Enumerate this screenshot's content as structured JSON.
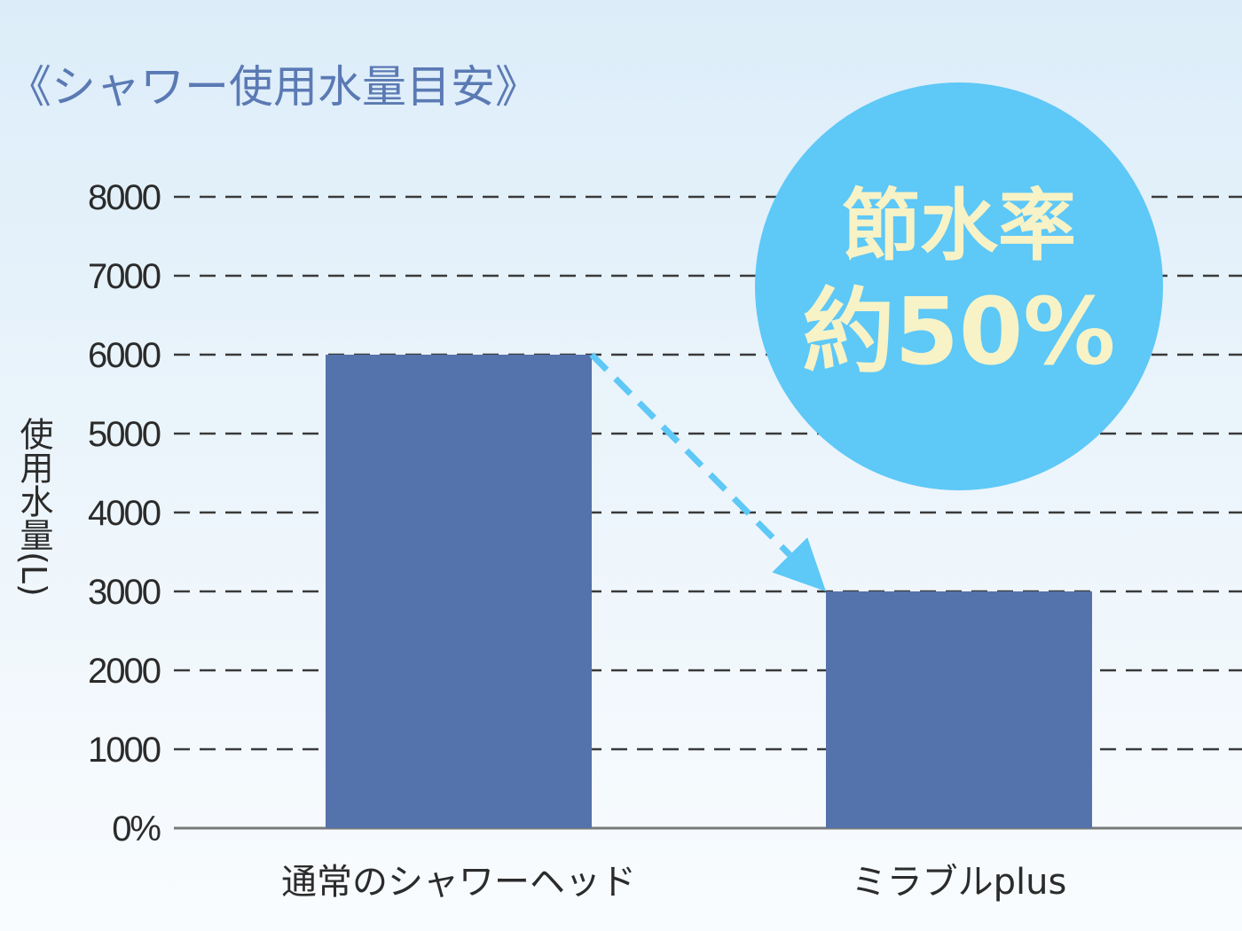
{
  "chart_data": {
    "type": "bar",
    "title": "《シャワー使用水量目安》",
    "ylabel": "使用水量(L)",
    "categories": [
      "通常のシャワーヘッド",
      "ミラブルplus"
    ],
    "values": [
      6000,
      3000
    ],
    "ylim": [
      0,
      8000
    ],
    "yticks": [
      0,
      1000,
      2000,
      3000,
      4000,
      5000,
      6000,
      7000,
      8000
    ],
    "ytick_labels": [
      "0%",
      "1000",
      "2000",
      "3000",
      "4000",
      "5000",
      "6000",
      "7000",
      "8000"
    ],
    "grid": true,
    "grid_style": "dashed",
    "annotation": {
      "line1": "節水率",
      "line2": "約50%",
      "arrow_from": "通常のシャワーヘッド",
      "arrow_to": "ミラブルplus"
    }
  },
  "colors": {
    "bar": "#5472ab",
    "title": "#5b7ab4",
    "badge": "#5ec8f7",
    "badge_text": "#f7f3c6",
    "arrow": "#5ec8f7",
    "grid": "#3a3a3a"
  }
}
